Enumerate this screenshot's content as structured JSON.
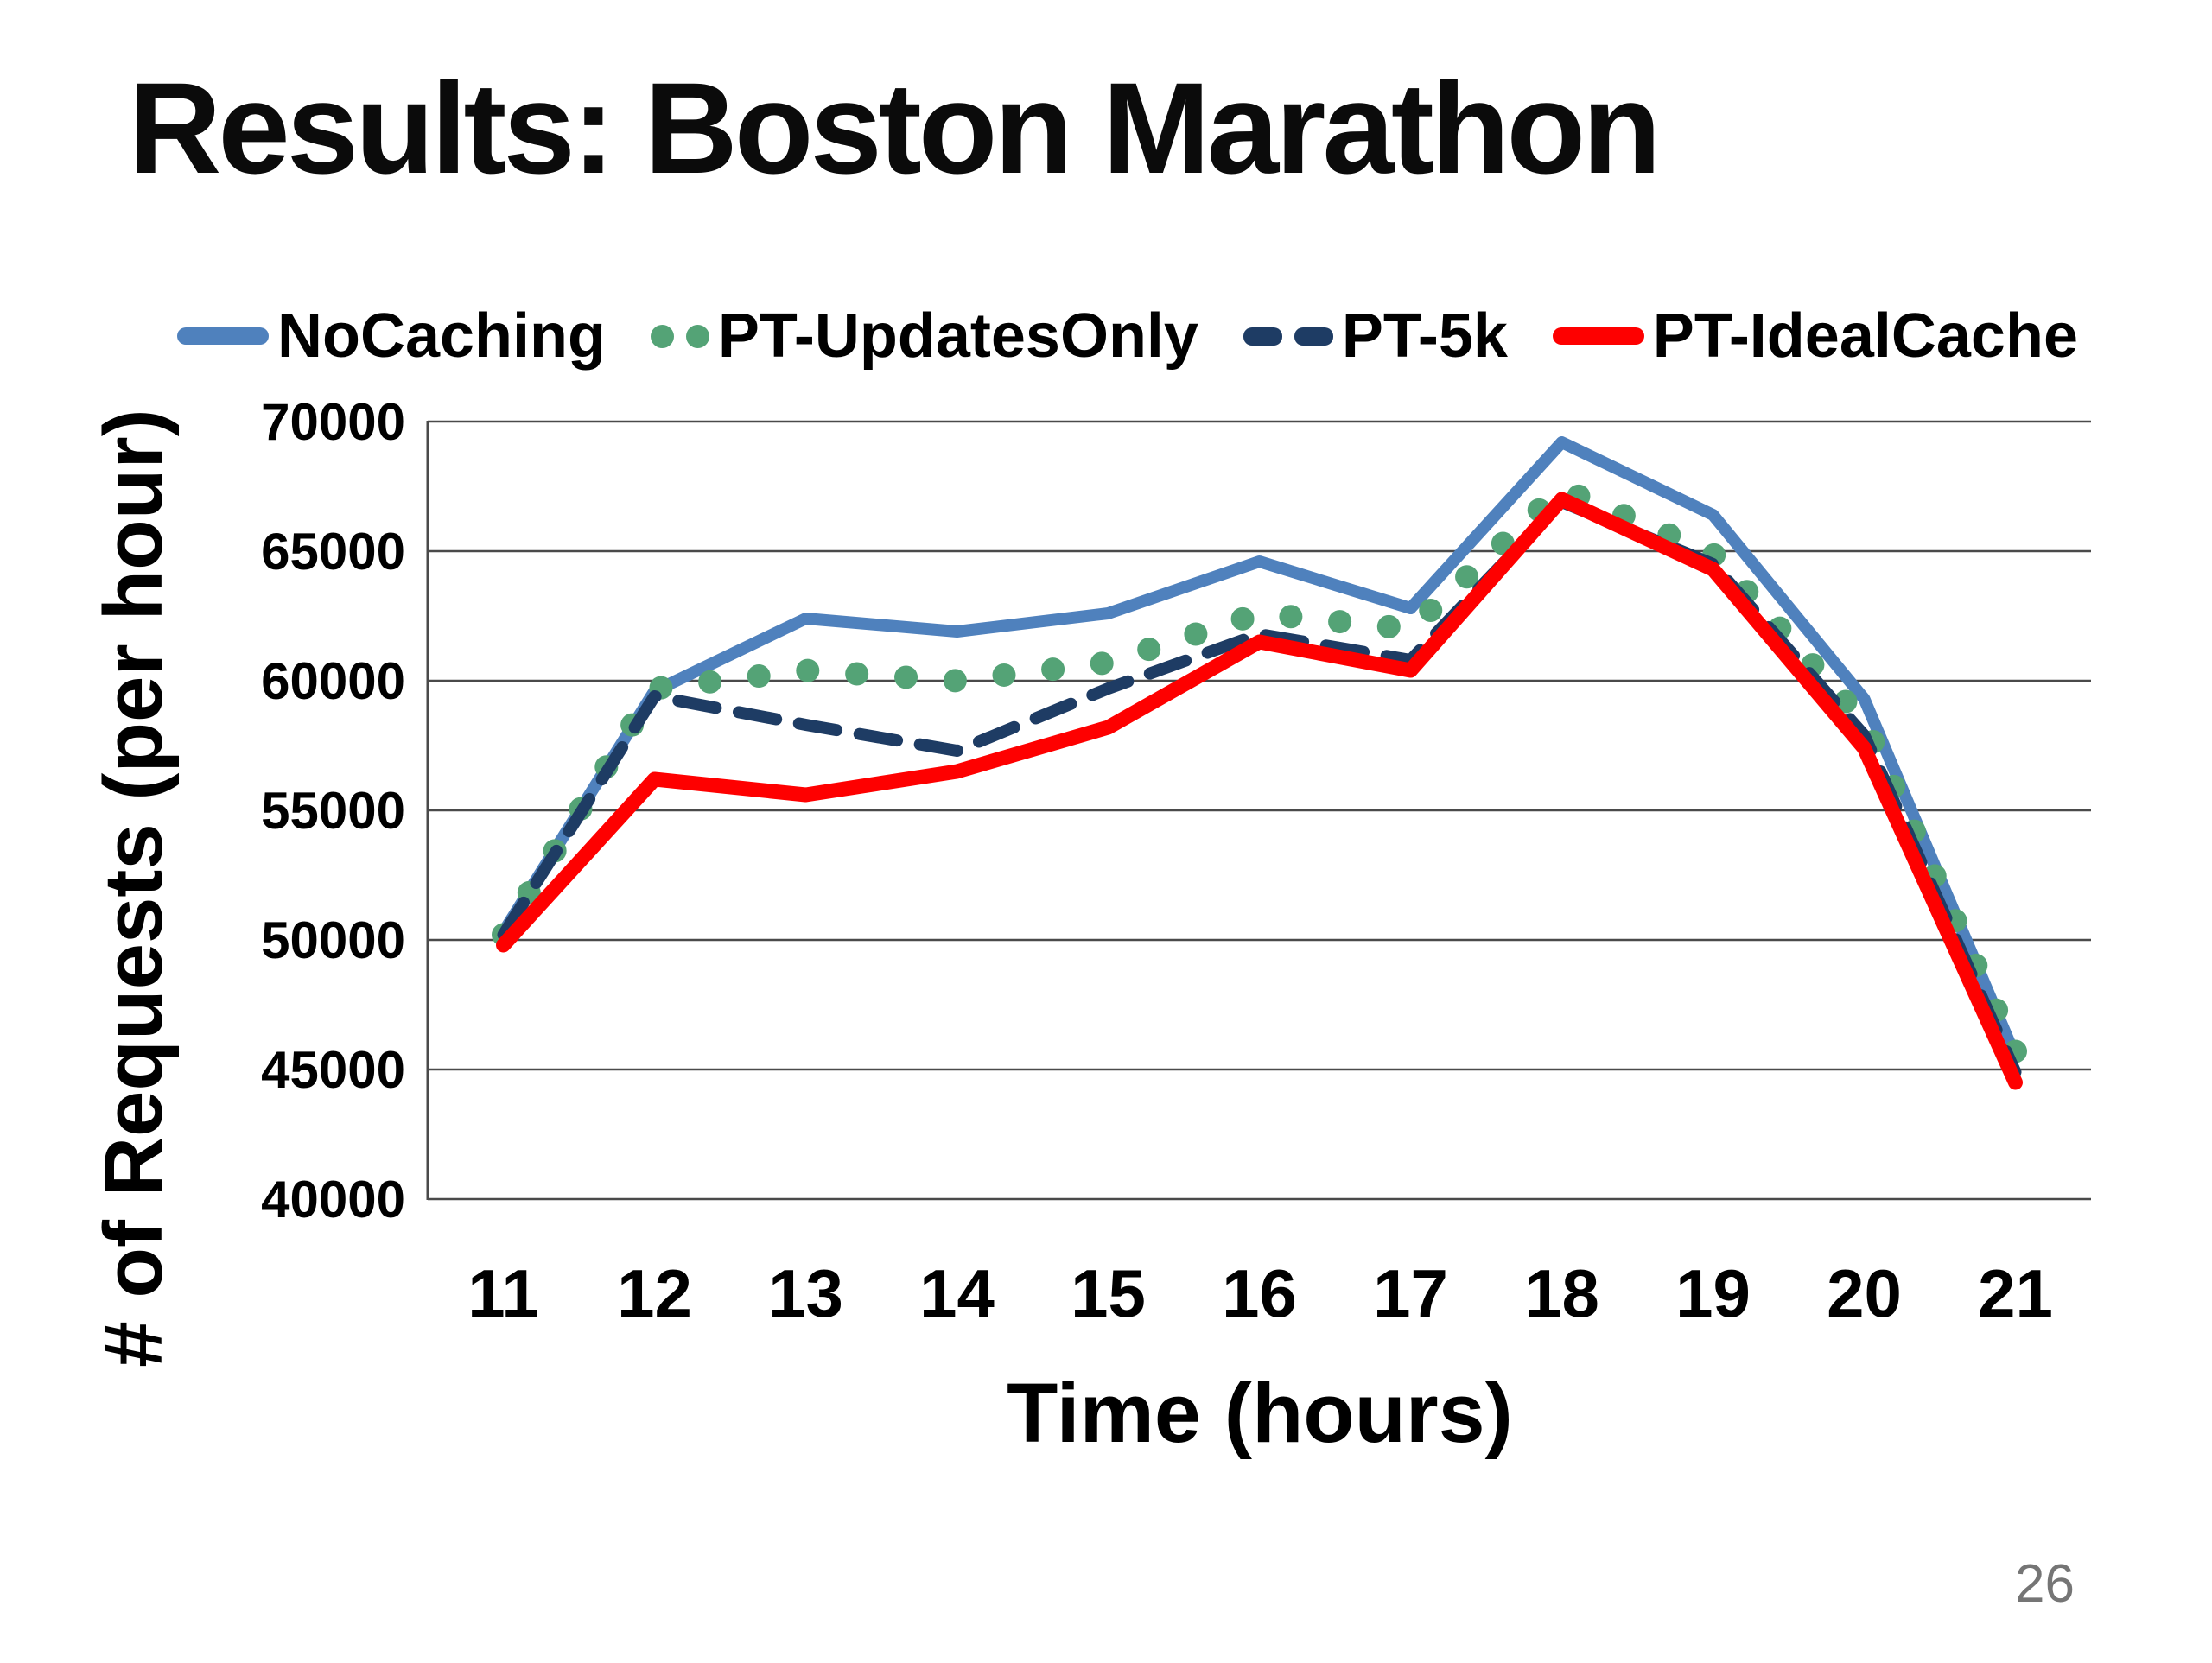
{
  "slide": {
    "title": "Results: Boston Marathon",
    "page_number": "26"
  },
  "chart_data": {
    "type": "line",
    "xlabel": "Time (hours)",
    "ylabel": "# of Requests (per hour)",
    "x": [
      11,
      12,
      13,
      14,
      15,
      16,
      17,
      18,
      19,
      20,
      21
    ],
    "ylim": [
      40000,
      70000
    ],
    "yticks": [
      40000,
      45000,
      50000,
      55000,
      60000,
      65000,
      70000
    ],
    "grid": true,
    "legend_position": "top",
    "axis_color": "#4a4a4a",
    "series": [
      {
        "name": "NoCaching",
        "style": "solid",
        "color": "#4F81BD",
        "width": 14,
        "values": [
          50300,
          59600,
          62400,
          61900,
          62600,
          64600,
          62800,
          69200,
          66400,
          59300,
          45500
        ]
      },
      {
        "name": "PT-UpdatesOnly",
        "style": "dotted",
        "color": "#54A376",
        "width": 14,
        "values": [
          50200,
          59700,
          60400,
          60000,
          60700,
          62600,
          62000,
          67400,
          64900,
          58400,
          45700
        ]
      },
      {
        "name": "PT-5k",
        "style": "dashed",
        "color": "#1E3C64",
        "width": 14,
        "values": [
          50200,
          59400,
          58300,
          57300,
          59700,
          61800,
          60800,
          66900,
          64500,
          57900,
          44900
        ]
      },
      {
        "name": "PT-IdealCache",
        "style": "solid",
        "color": "#FE0000",
        "width": 17,
        "values": [
          49800,
          56200,
          55600,
          56500,
          58200,
          61500,
          60400,
          67000,
          64300,
          57400,
          44500
        ]
      }
    ]
  }
}
